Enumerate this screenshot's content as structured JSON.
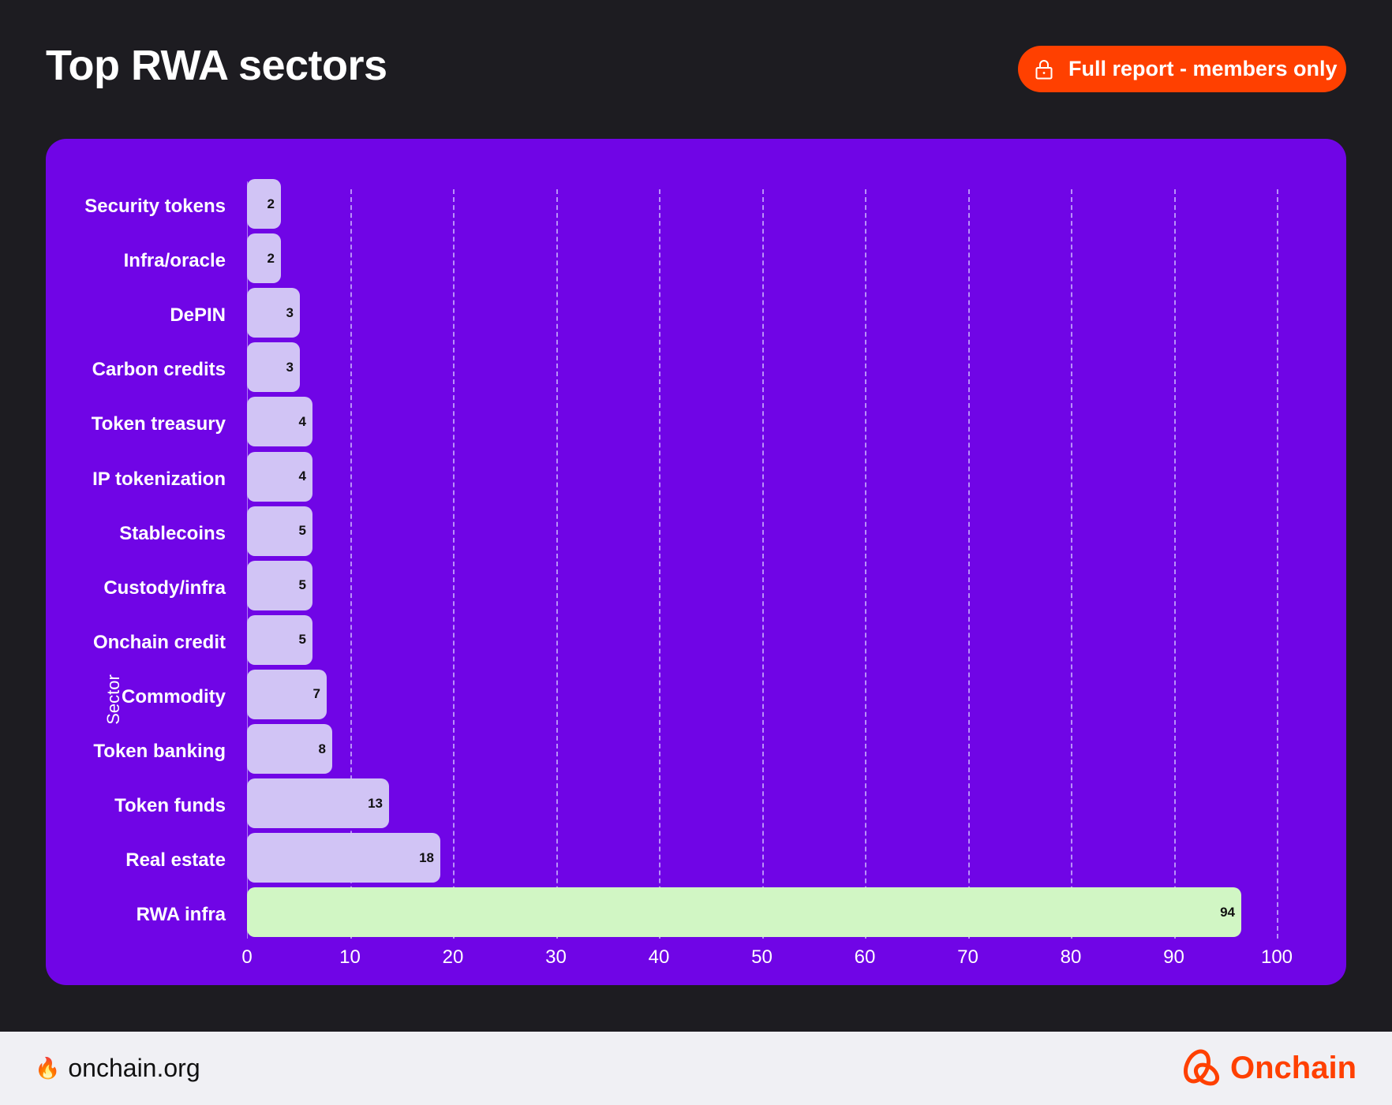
{
  "header": {
    "title": "Top RWA sectors",
    "cta_label": "Full report - members only",
    "cta_icon": "lock-icon"
  },
  "colors": {
    "background": "#1d1c21",
    "card": "#7005e6",
    "bar": "#d1c4f5",
    "bar_highlight": "#d1f6c4",
    "accent": "#ff4000",
    "footer": "#f0f0f4"
  },
  "chart_data": {
    "type": "bar",
    "orientation": "horizontal",
    "title": "Top RWA sectors",
    "xlabel": "",
    "ylabel": "Sector",
    "categories": [
      "Security tokens",
      "Infra/oracle",
      "DePIN",
      "Carbon credits",
      "Token treasury",
      "IP tokenization",
      "Stablecoins",
      "Custody/infra",
      "Onchain credit",
      "Commodity",
      "Token banking",
      "Token funds",
      "Real estate",
      "RWA infra"
    ],
    "values": [
      2,
      2,
      3,
      3,
      4,
      4,
      5,
      5,
      5,
      7,
      8,
      13,
      18,
      94
    ],
    "highlight": "RWA infra",
    "xlim": [
      0,
      100
    ],
    "xticks": [
      "0",
      "10",
      "20",
      "30",
      "40",
      "50",
      "60",
      "70",
      "80",
      "90",
      "100"
    ],
    "grid": "vertical dashed",
    "legend": "none",
    "data_labels": true
  },
  "footer": {
    "site_icon": "fire-emoji",
    "site": "onchain.org",
    "brand": "Onchain"
  }
}
